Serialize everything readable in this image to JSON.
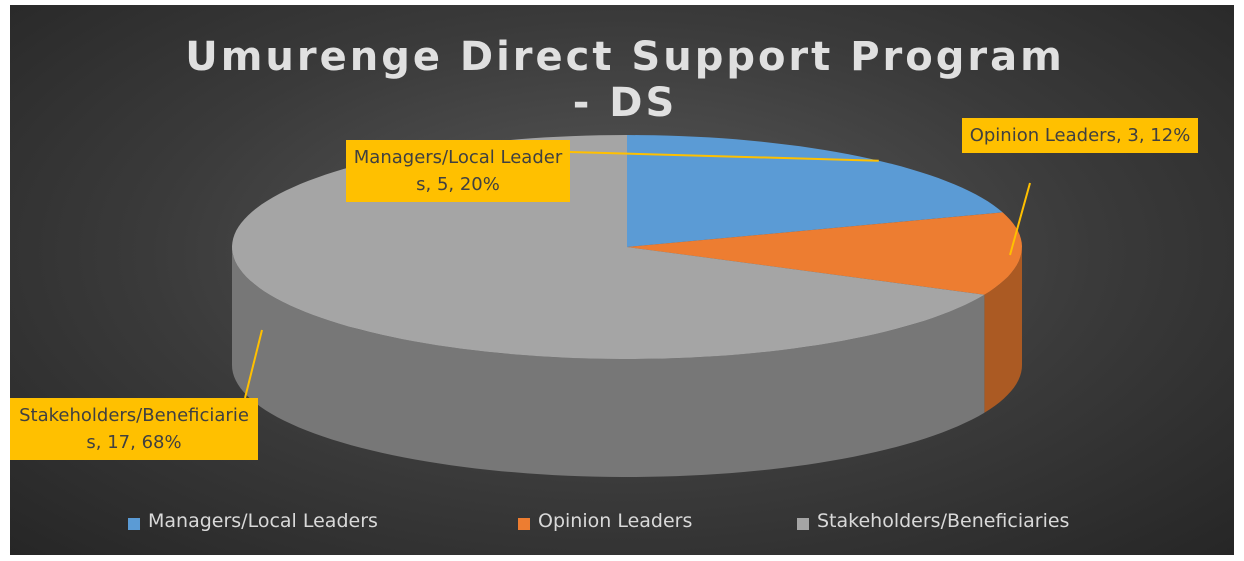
{
  "chart_data": {
    "type": "pie",
    "title": "Umurenge Direct Support Program - DS",
    "categories": [
      "Managers/Local Leaders",
      "Opinion Leaders",
      "Stakeholders/Beneficiaries"
    ],
    "values": [
      5,
      3,
      17
    ],
    "value_labels": [
      "Managers/Local Leaders, 5, 20%",
      "Opinion Leaders, 3, 12%",
      "Stakeholders/Beneficiaries, 17, 68%"
    ],
    "colors": [
      "#5b9bd5",
      "#ed7d31",
      "#a5a5a5"
    ],
    "label_color": "#ffc000",
    "legend": "bottom"
  }
}
